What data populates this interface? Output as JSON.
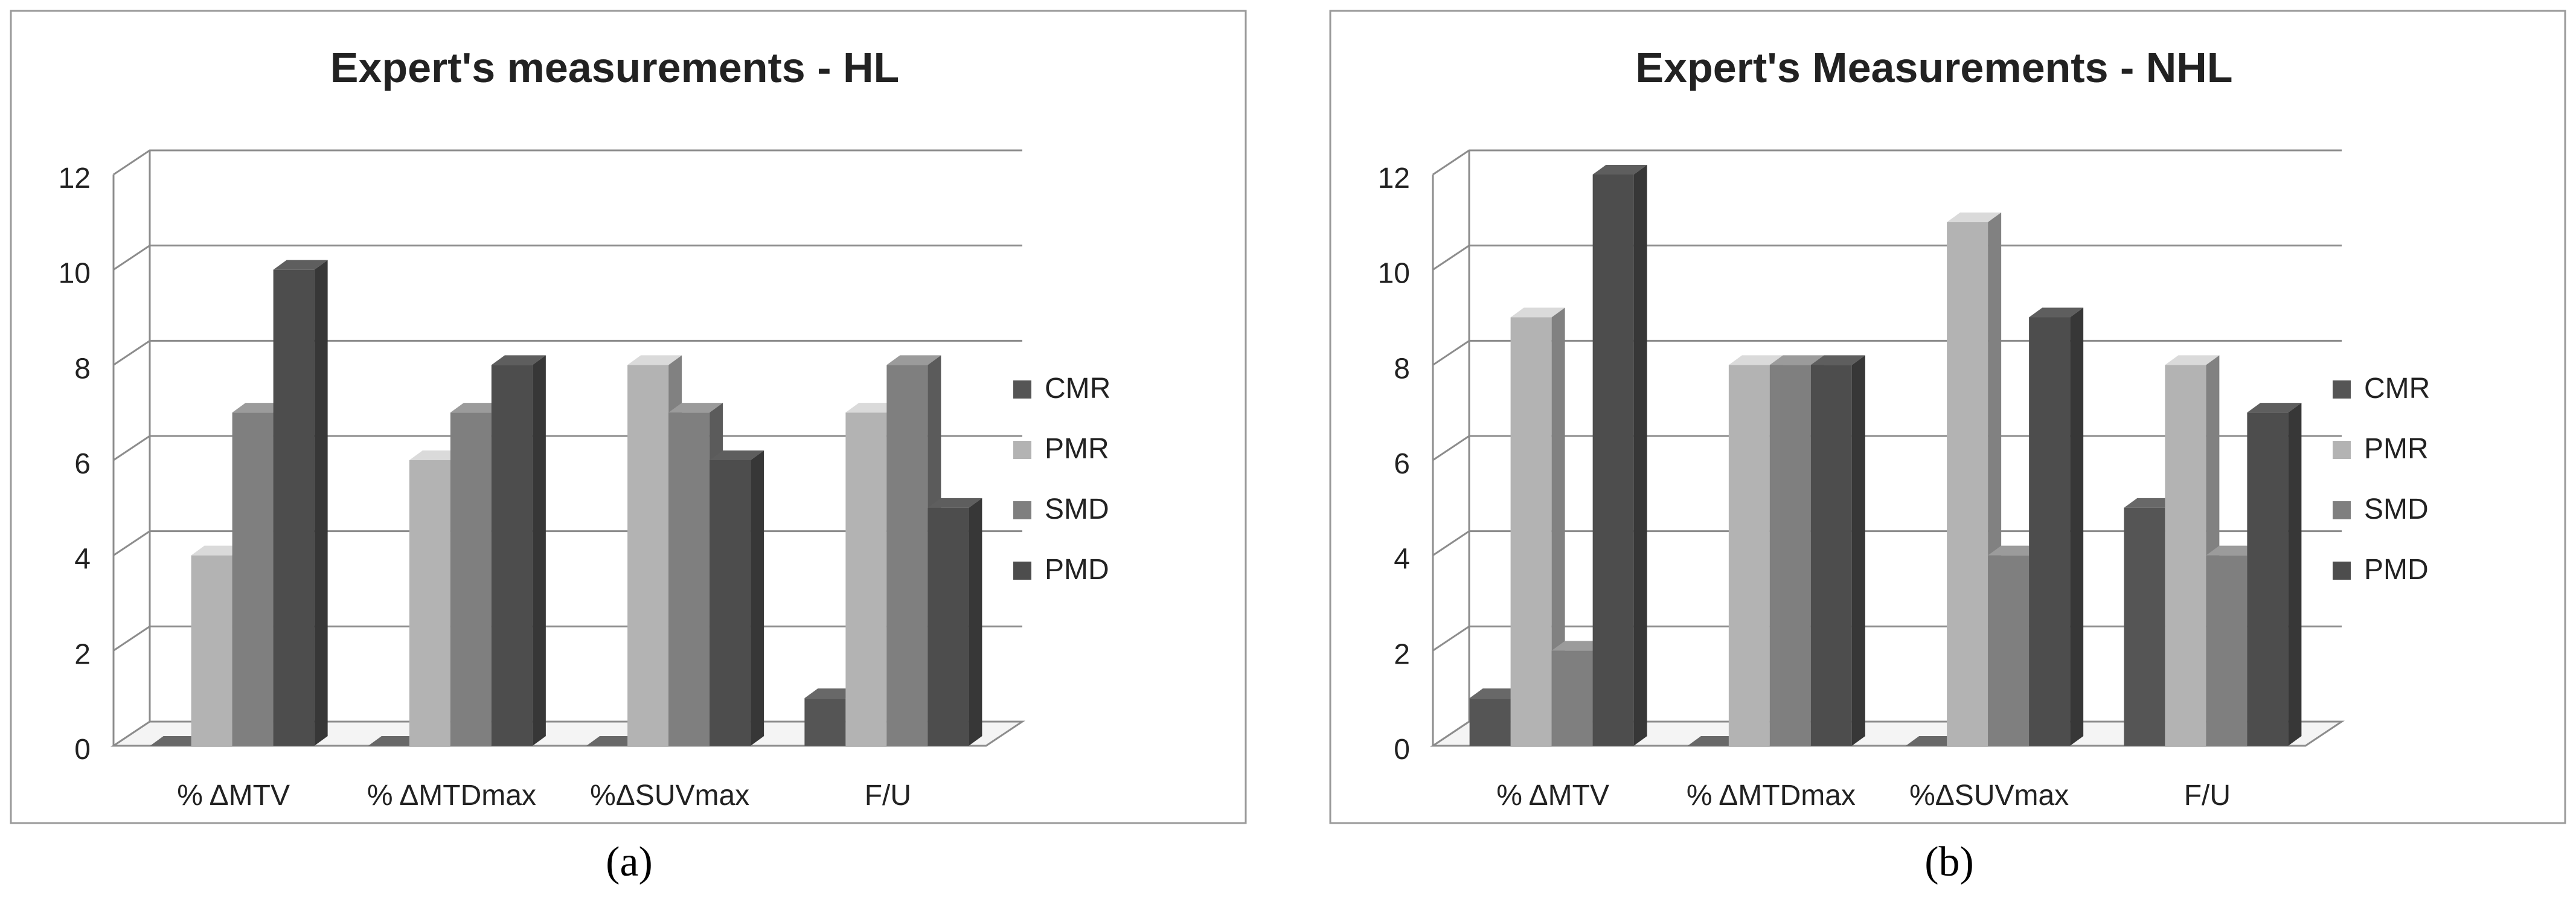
{
  "chart_data": [
    {
      "type": "bar",
      "title": "Expert's measurements - HL",
      "categories": [
        "% ΔMTV",
        "% ΔMTDmax",
        "%ΔSUVmax",
        "F/U"
      ],
      "yticks": [
        "0",
        "2",
        "4",
        "6",
        "8",
        "10",
        "12"
      ],
      "ylim": [
        0,
        12
      ],
      "legend_position": "right",
      "series": [
        {
          "name": "CMR",
          "values": [
            0,
            0,
            0,
            1
          ],
          "color": "#555555"
        },
        {
          "name": "PMR",
          "values": [
            4,
            6,
            8,
            7
          ],
          "color": "#b3b3b3"
        },
        {
          "name": "SMD",
          "values": [
            7,
            7,
            7,
            8
          ],
          "color": "#7f7f7f"
        },
        {
          "name": "PMD",
          "values": [
            10,
            8,
            6,
            5
          ],
          "color": "#4d4d4d"
        }
      ],
      "caption": "(a)"
    },
    {
      "type": "bar",
      "title": "Expert's Measurements - NHL",
      "categories": [
        "% ΔMTV",
        "% ΔMTDmax",
        "%ΔSUVmax",
        "F/U"
      ],
      "yticks": [
        "0",
        "2",
        "4",
        "6",
        "8",
        "10",
        "12"
      ],
      "ylim": [
        0,
        12
      ],
      "legend_position": "right",
      "series": [
        {
          "name": "CMR",
          "values": [
            1,
            0,
            0,
            5
          ],
          "color": "#555555"
        },
        {
          "name": "PMR",
          "values": [
            9,
            8,
            11,
            8
          ],
          "color": "#b3b3b3"
        },
        {
          "name": "SMD",
          "values": [
            2,
            8,
            4,
            4
          ],
          "color": "#7f7f7f"
        },
        {
          "name": "PMD",
          "values": [
            12,
            8,
            9,
            7
          ],
          "color": "#4d4d4d"
        }
      ],
      "caption": "(b)"
    }
  ]
}
